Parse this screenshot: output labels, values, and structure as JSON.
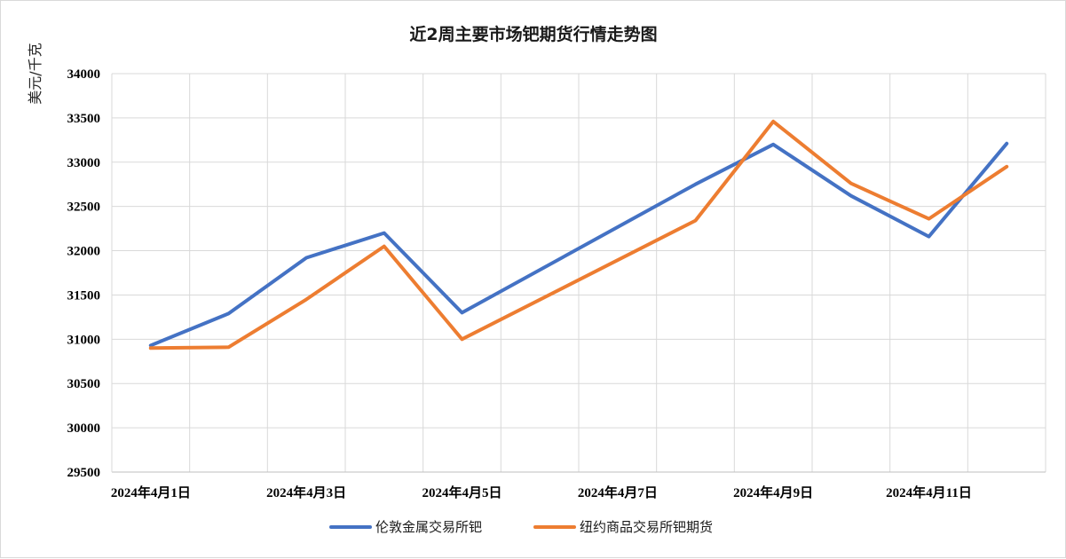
{
  "chart_data": {
    "type": "line",
    "title": "近2周主要市场钯期货行情走势图",
    "xlabel": "",
    "ylabel": "美元/千克",
    "ylim": [
      29500,
      34000
    ],
    "ytick_step": 500,
    "x_tick_labels": [
      "2024年4月1日",
      "2024年4月3日",
      "2024年4月5日",
      "2024年4月7日",
      "2024年4月9日",
      "2024年4月11日"
    ],
    "x_tick_positions": [
      1,
      3,
      5,
      7,
      9,
      11
    ],
    "xlim": [
      0.5,
      12.5
    ],
    "grid": true,
    "legend_position": "bottom",
    "series": [
      {
        "name": "伦敦金属交易所钯",
        "color": "#4472C4",
        "x": [
          1,
          2,
          3,
          4,
          5,
          8,
          9,
          10,
          11,
          12
        ],
        "values": [
          30930,
          31290,
          31920,
          32200,
          31300,
          32750,
          33200,
          32620,
          32160,
          33210
        ]
      },
      {
        "name": "纽约商品交易所钯期货",
        "color": "#ED7D31",
        "x": [
          1,
          2,
          3,
          4,
          5,
          8,
          9,
          10,
          11,
          12
        ],
        "values": [
          30900,
          30910,
          31450,
          32050,
          31000,
          32340,
          33460,
          32760,
          32360,
          32950
        ]
      }
    ]
  }
}
